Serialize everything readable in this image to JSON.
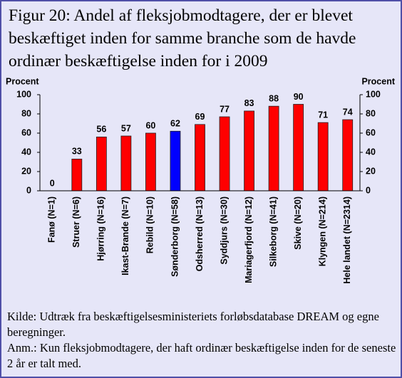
{
  "chart_data": {
    "type": "bar",
    "title": "Figur 20: Andel af fleksjobmodtagere, der er blevet beskæftiget inden for samme branche som de havde ordinær beskæftigelse inden for i 2009",
    "ylabel": "Procent",
    "y2label": "Procent",
    "categories": [
      "Fanø (N=1)",
      "Struer (N=6)",
      "Hjørring (N=16)",
      "Ikast-Brande (N=7)",
      "Rebild (N=10)",
      "Sønderborg (N=58)",
      "Odsherred (N=13)",
      "Syddjurs (N=30)",
      "Mariagerfjord (N=12)",
      "Silkeborg (N=41)",
      "Skive (N=20)",
      "Klyngen (N=214)",
      "Hele landet (N=2314)"
    ],
    "values": [
      0,
      33,
      56,
      57,
      60,
      62,
      69,
      77,
      83,
      88,
      90,
      71,
      74
    ],
    "colors": [
      "#ff0000",
      "#ff0000",
      "#ff0000",
      "#ff0000",
      "#ff0000",
      "#0000ff",
      "#ff0000",
      "#ff0000",
      "#ff0000",
      "#ff0000",
      "#ff0000",
      "#ff0000",
      "#ff0000"
    ],
    "ylim": [
      0,
      100
    ],
    "yticks": [
      0,
      20,
      40,
      60,
      80,
      100
    ],
    "y2lim": [
      0,
      100
    ],
    "y2ticks": [
      0,
      20,
      40,
      60,
      80,
      100
    ],
    "grid": false
  },
  "notes": [
    "Kilde: Udtræk fra beskæftigelsesministeriets forløbsdatabase DREAM og egne beregninger.",
    "Anm.: Kun fleksjobmodtagere, der haft ordinær beskæftigelse inden for de seneste 2 år er talt med."
  ]
}
